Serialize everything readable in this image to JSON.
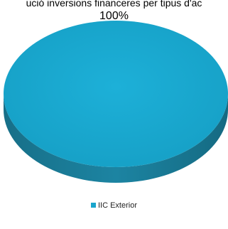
{
  "chart_data": {
    "type": "pie",
    "title": "ució inversions financeres per tipus d'ac",
    "categories": [
      "IIC Exterior"
    ],
    "values": [
      100
    ],
    "data_labels": [
      "100%"
    ],
    "legend": [
      "IIC Exterior"
    ],
    "legend_position": "bottom",
    "colors": {
      "IIC Exterior": "#1aa5cc",
      "side": "#1a7a95",
      "side_shade": "#145f74"
    }
  }
}
